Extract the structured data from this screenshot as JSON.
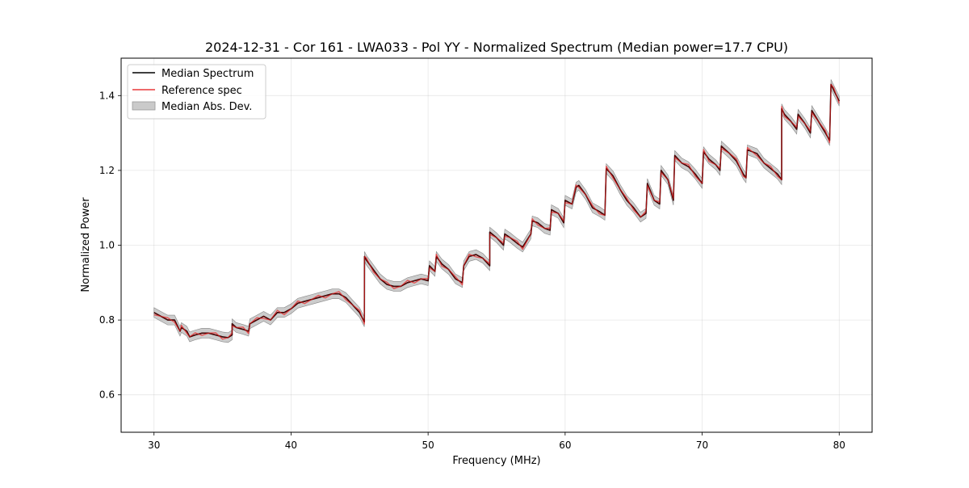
{
  "chart_data": {
    "type": "line",
    "title": "2024-12-31 - Cor 161 - LWA033 - Pol YY - Normalized Spectrum (Median power=17.7 CPU)",
    "xlabel": "Frequency (MHz)",
    "ylabel": "Normalized Power",
    "xlim": [
      27.6,
      82.4
    ],
    "ylim": [
      0.5,
      1.5
    ],
    "xticks": [
      30,
      40,
      50,
      60,
      70,
      80
    ],
    "yticks": [
      0.6,
      0.8,
      1.0,
      1.2,
      1.4
    ],
    "grid": true,
    "legend_position": "upper-left",
    "legend": [
      {
        "label": "Median Spectrum",
        "kind": "line",
        "color": "#000000"
      },
      {
        "label": "Reference spec",
        "kind": "line",
        "color": "#e8383a"
      },
      {
        "label": "Median Abs. Dev.",
        "kind": "patch",
        "color": "#b3b3b3"
      }
    ],
    "band_halfwidth": 0.013,
    "reference_offset": 0.006,
    "series": [
      {
        "name": "Median Spectrum",
        "color": "#000000",
        "x": [
          30.0,
          30.5,
          31.0,
          31.5,
          31.9,
          32.0,
          32.4,
          32.6,
          33.0,
          33.5,
          34.0,
          34.5,
          35.0,
          35.4,
          35.7,
          35.7,
          36.0,
          36.5,
          36.9,
          37.0,
          37.5,
          38.0,
          38.5,
          39.0,
          39.5,
          40.0,
          40.5,
          41.0,
          41.5,
          42.0,
          42.5,
          43.0,
          43.5,
          44.0,
          44.5,
          45.0,
          45.35,
          45.36,
          45.5,
          46.0,
          46.5,
          47.0,
          47.5,
          48.0,
          48.5,
          49.0,
          49.5,
          50.0,
          50.1,
          50.5,
          50.6,
          51.0,
          51.5,
          52.0,
          52.5,
          52.6,
          53.0,
          53.5,
          54.0,
          54.5,
          54.5,
          55.0,
          55.5,
          55.6,
          56.0,
          56.5,
          56.9,
          57.5,
          57.6,
          58.0,
          58.5,
          58.9,
          59.0,
          59.5,
          59.9,
          60.0,
          60.5,
          60.8,
          61.0,
          61.5,
          62.0,
          62.5,
          62.9,
          63.0,
          63.5,
          64.0,
          64.5,
          65.0,
          65.5,
          65.9,
          66.0,
          66.5,
          66.9,
          67.0,
          67.5,
          67.9,
          68.0,
          68.5,
          69.0,
          69.5,
          70.0,
          70.1,
          70.5,
          71.0,
          71.3,
          71.4,
          72.0,
          72.5,
          73.0,
          73.2,
          73.3,
          74.0,
          74.5,
          75.0,
          75.5,
          75.8,
          75.8,
          76.0,
          76.5,
          76.9,
          77.0,
          77.5,
          77.9,
          78.0,
          78.5,
          79.0,
          79.3,
          79.4,
          79.6,
          80.0
        ],
        "values": [
          0.82,
          0.81,
          0.8,
          0.8,
          0.77,
          0.78,
          0.77,
          0.755,
          0.76,
          0.765,
          0.765,
          0.76,
          0.755,
          0.753,
          0.76,
          0.79,
          0.78,
          0.775,
          0.77,
          0.79,
          0.8,
          0.81,
          0.8,
          0.82,
          0.82,
          0.83,
          0.845,
          0.85,
          0.855,
          0.86,
          0.865,
          0.87,
          0.87,
          0.86,
          0.84,
          0.82,
          0.795,
          0.97,
          0.96,
          0.935,
          0.91,
          0.895,
          0.89,
          0.89,
          0.9,
          0.905,
          0.91,
          0.905,
          0.945,
          0.93,
          0.97,
          0.95,
          0.935,
          0.91,
          0.9,
          0.945,
          0.97,
          0.975,
          0.965,
          0.945,
          1.035,
          1.02,
          1.0,
          1.03,
          1.02,
          1.005,
          0.995,
          1.03,
          1.065,
          1.06,
          1.045,
          1.04,
          1.095,
          1.085,
          1.06,
          1.12,
          1.11,
          1.155,
          1.16,
          1.135,
          1.1,
          1.09,
          1.08,
          1.205,
          1.185,
          1.15,
          1.12,
          1.1,
          1.075,
          1.085,
          1.165,
          1.12,
          1.11,
          1.2,
          1.175,
          1.12,
          1.24,
          1.22,
          1.21,
          1.19,
          1.165,
          1.25,
          1.23,
          1.215,
          1.2,
          1.265,
          1.245,
          1.225,
          1.19,
          1.18,
          1.255,
          1.245,
          1.22,
          1.205,
          1.19,
          1.175,
          1.365,
          1.35,
          1.33,
          1.31,
          1.35,
          1.325,
          1.3,
          1.36,
          1.33,
          1.3,
          1.28,
          1.43,
          1.415,
          1.385
        ]
      },
      {
        "name": "Reference spec",
        "color": "#e8383a"
      }
    ]
  }
}
